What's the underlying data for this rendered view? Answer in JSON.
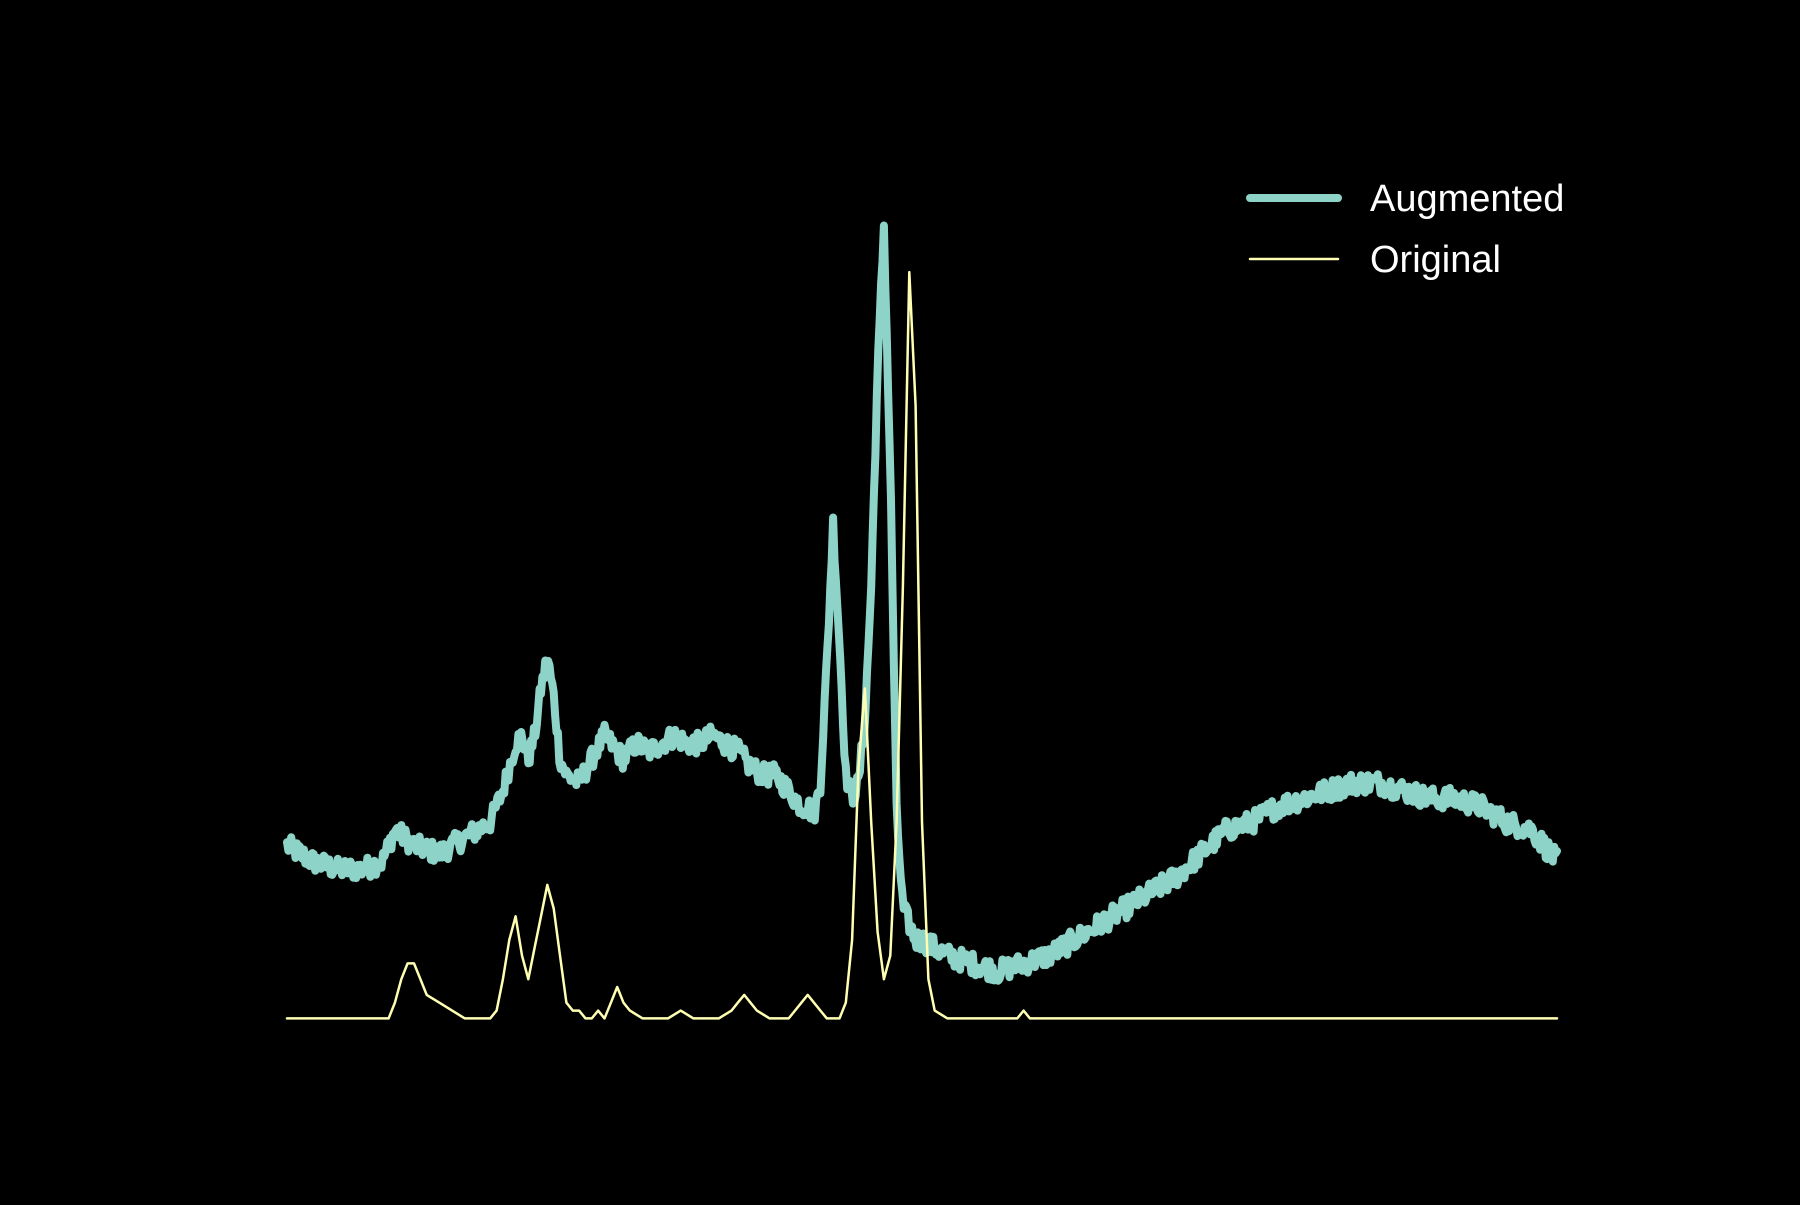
{
  "chart_data": {
    "type": "line",
    "title": "",
    "xlabel": "",
    "ylabel": "",
    "axes_visible": false,
    "grid": false,
    "legend_position": "top-right",
    "xlim": [
      0,
      1000
    ],
    "ylim": [
      -0.03,
      1.08
    ],
    "series": [
      {
        "name": "Augmented",
        "color": "#8dd3c7",
        "stroke": "thick",
        "noisy": true,
        "x": [
          0,
          20,
          40,
          60,
          75,
          85,
          100,
          120,
          140,
          160,
          170,
          180,
          185,
          190,
          195,
          200,
          205,
          210,
          215,
          220,
          230,
          240,
          250,
          260,
          265,
          275,
          285,
          295,
          305,
          315,
          325,
          335,
          345,
          355,
          365,
          375,
          385,
          395,
          405,
          410,
          415,
          420,
          425,
          430,
          435,
          440,
          445,
          450,
          455,
          460,
          465,
          470,
          475,
          480,
          485,
          490,
          495,
          500,
          510,
          520,
          540,
          560,
          580,
          600,
          620,
          640,
          660,
          680,
          700,
          720,
          740,
          760,
          780,
          800,
          820,
          840,
          860,
          880,
          900,
          920,
          940,
          960,
          980,
          1000
        ],
        "y": [
          0.22,
          0.2,
          0.19,
          0.19,
          0.2,
          0.24,
          0.22,
          0.21,
          0.23,
          0.25,
          0.29,
          0.35,
          0.36,
          0.33,
          0.36,
          0.42,
          0.46,
          0.41,
          0.33,
          0.31,
          0.3,
          0.33,
          0.36,
          0.34,
          0.33,
          0.35,
          0.34,
          0.35,
          0.36,
          0.35,
          0.35,
          0.36,
          0.35,
          0.34,
          0.32,
          0.31,
          0.31,
          0.29,
          0.27,
          0.27,
          0.26,
          0.3,
          0.45,
          0.63,
          0.48,
          0.31,
          0.28,
          0.3,
          0.38,
          0.55,
          0.82,
          1.01,
          0.7,
          0.26,
          0.14,
          0.12,
          0.1,
          0.1,
          0.09,
          0.08,
          0.07,
          0.06,
          0.07,
          0.08,
          0.1,
          0.12,
          0.14,
          0.16,
          0.18,
          0.21,
          0.24,
          0.25,
          0.27,
          0.28,
          0.29,
          0.3,
          0.3,
          0.29,
          0.28,
          0.28,
          0.27,
          0.25,
          0.24,
          0.2
        ]
      },
      {
        "name": "Original",
        "color": "#ffffb3",
        "stroke": "thin",
        "noisy": false,
        "x": [
          0,
          40,
          70,
          80,
          85,
          90,
          95,
          100,
          105,
          110,
          120,
          130,
          140,
          150,
          160,
          165,
          170,
          175,
          180,
          185,
          190,
          195,
          200,
          205,
          210,
          215,
          220,
          225,
          230,
          235,
          240,
          245,
          250,
          255,
          260,
          265,
          270,
          280,
          290,
          300,
          310,
          320,
          330,
          340,
          350,
          355,
          360,
          365,
          370,
          380,
          390,
          395,
          400,
          405,
          410,
          415,
          420,
          425,
          430,
          435,
          440,
          445,
          450,
          455,
          460,
          465,
          470,
          475,
          480,
          485,
          490,
          495,
          500,
          505,
          510,
          520,
          530,
          540,
          550,
          560,
          570,
          575,
          580,
          585,
          600,
          650,
          700,
          750,
          800,
          850,
          900,
          950,
          1000
        ],
        "y": [
          0.0,
          0.0,
          0.0,
          0.0,
          0.02,
          0.05,
          0.07,
          0.07,
          0.05,
          0.03,
          0.02,
          0.01,
          0.0,
          0.0,
          0.0,
          0.01,
          0.05,
          0.1,
          0.13,
          0.08,
          0.05,
          0.09,
          0.13,
          0.17,
          0.14,
          0.08,
          0.02,
          0.01,
          0.01,
          0.0,
          0.0,
          0.01,
          0.0,
          0.02,
          0.04,
          0.02,
          0.01,
          0.0,
          0.0,
          0.0,
          0.01,
          0.0,
          0.0,
          0.0,
          0.01,
          0.02,
          0.03,
          0.02,
          0.01,
          0.0,
          0.0,
          0.0,
          0.01,
          0.02,
          0.03,
          0.02,
          0.01,
          0.0,
          0.0,
          0.0,
          0.02,
          0.1,
          0.32,
          0.42,
          0.25,
          0.11,
          0.05,
          0.08,
          0.25,
          0.55,
          0.95,
          0.78,
          0.25,
          0.05,
          0.01,
          0.0,
          0.0,
          0.0,
          0.0,
          0.0,
          0.0,
          0.0,
          0.01,
          0.0,
          0.0,
          0.0,
          0.0,
          0.0,
          0.0,
          0.0,
          0.0,
          0.0,
          0.0
        ]
      }
    ]
  }
}
